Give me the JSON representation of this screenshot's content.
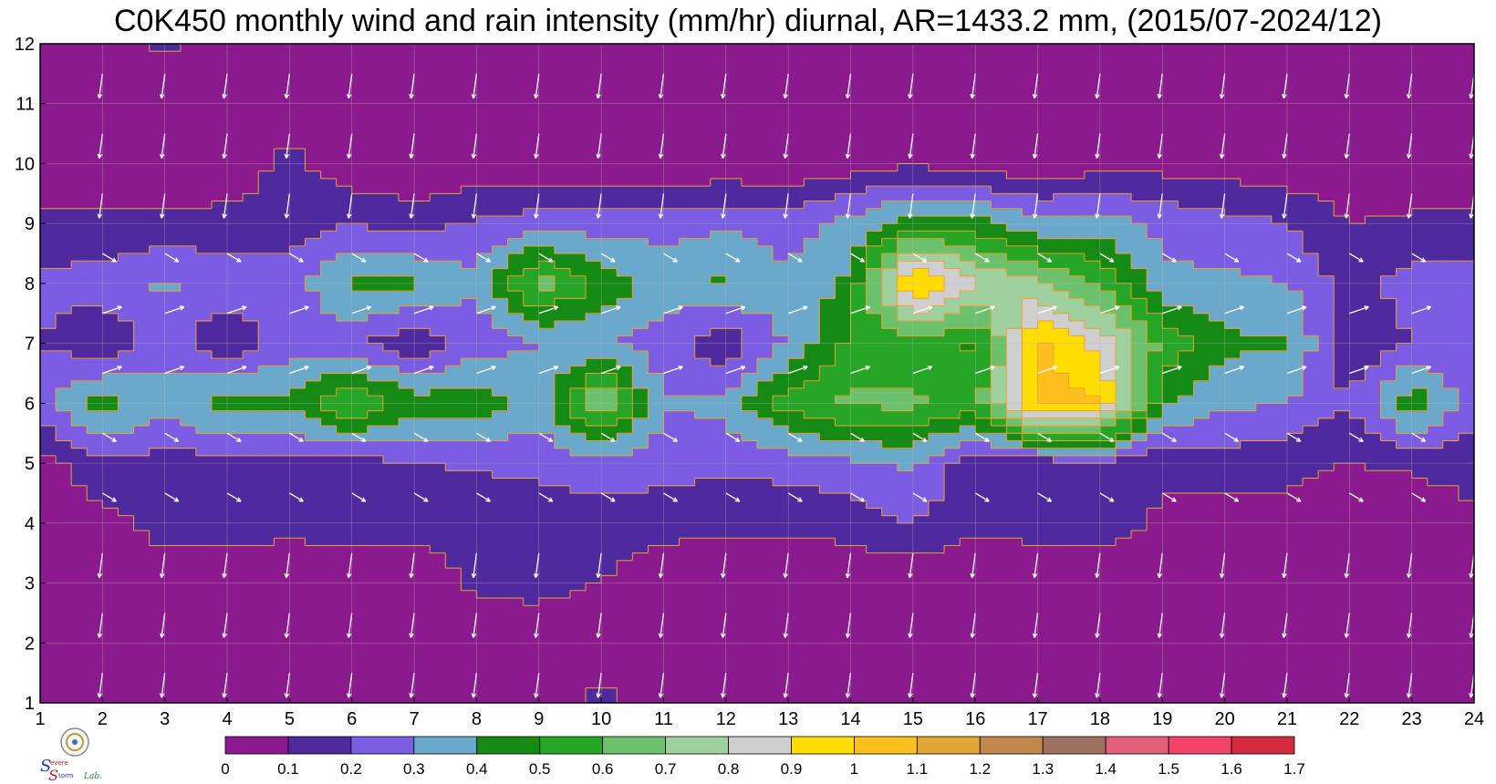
{
  "chart_data": {
    "type": "heatmap",
    "title": "C0K450 monthly wind and rain intensity (mm/hr) diurnal, AR=1433.2 mm, (2015/07-2024/12)",
    "xlabel": "",
    "ylabel": "",
    "x_ticks": [
      "1",
      "2",
      "3",
      "4",
      "5",
      "6",
      "7",
      "8",
      "9",
      "10",
      "11",
      "12",
      "13",
      "14",
      "15",
      "16",
      "17",
      "18",
      "19",
      "20",
      "21",
      "22",
      "23",
      "24"
    ],
    "y_ticks": [
      "1",
      "2",
      "3",
      "4",
      "5",
      "6",
      "7",
      "8",
      "9",
      "10",
      "11",
      "12"
    ],
    "xlim": [
      1,
      24
    ],
    "ylim": [
      1,
      12
    ],
    "colorbar": {
      "ticks": [
        "0",
        "0.1",
        "0.2",
        "0.3",
        "0.4",
        "0.5",
        "0.6",
        "0.7",
        "0.8",
        "0.9",
        "1",
        "1.1",
        "1.2",
        "1.3",
        "1.4",
        "1.5",
        "1.6",
        "1.7"
      ],
      "colors": [
        "#8b1a8e",
        "#4e2a9e",
        "#7a5de2",
        "#6aa8cc",
        "#158a14",
        "#26a526",
        "#6cc16c",
        "#9fd09f",
        "#cfcfcf",
        "#ffdd00",
        "#ffbf1e",
        "#e2a637",
        "#c1874c",
        "#9c7160",
        "#e2607a",
        "#f24468",
        "#d52a3e"
      ]
    },
    "grid": true,
    "contour_line_color": "#f0a030",
    "vector_color": "#ffffff",
    "grid_values_note": "rain intensity (mm/hr) sampled on integer x (1-24) and y (1-12) grid",
    "z": [
      [
        0.02,
        0.02,
        0.02,
        0.02,
        0.02,
        0.02,
        0.02,
        0.02,
        0.02,
        0.15,
        0.02,
        0.02,
        0.02,
        0.02,
        0.02,
        0.02,
        0.02,
        0.02,
        0.02,
        0.02,
        0.02,
        0.02,
        0.02,
        0.02
      ],
      [
        0.02,
        0.02,
        0.02,
        0.02,
        0.02,
        0.02,
        0.02,
        0.02,
        0.02,
        0.02,
        0.02,
        0.02,
        0.02,
        0.02,
        0.02,
        0.02,
        0.02,
        0.02,
        0.02,
        0.02,
        0.02,
        0.02,
        0.02,
        0.02
      ],
      [
        0.02,
        0.02,
        0.02,
        0.02,
        0.02,
        0.02,
        0.02,
        0.12,
        0.14,
        0.1,
        0.02,
        0.02,
        0.02,
        0.02,
        0.02,
        0.02,
        0.02,
        0.02,
        0.02,
        0.02,
        0.02,
        0.02,
        0.02,
        0.02
      ],
      [
        0.03,
        0.06,
        0.15,
        0.15,
        0.13,
        0.15,
        0.14,
        0.14,
        0.16,
        0.15,
        0.14,
        0.13,
        0.12,
        0.14,
        0.2,
        0.12,
        0.14,
        0.16,
        0.08,
        0.05,
        0.08,
        0.02,
        0.02,
        0.08
      ],
      [
        0.05,
        0.18,
        0.15,
        0.16,
        0.18,
        0.15,
        0.2,
        0.21,
        0.22,
        0.25,
        0.24,
        0.22,
        0.24,
        0.28,
        0.32,
        0.13,
        0.14,
        0.16,
        0.12,
        0.16,
        0.12,
        0.1,
        0.12,
        0.14
      ],
      [
        0.28,
        0.45,
        0.35,
        0.45,
        0.42,
        0.62,
        0.45,
        0.48,
        0.35,
        0.72,
        0.3,
        0.34,
        0.55,
        0.62,
        0.62,
        0.55,
        1.05,
        1.02,
        0.42,
        0.32,
        0.3,
        0.2,
        0.48,
        0.25
      ],
      [
        0.2,
        0.12,
        0.24,
        0.12,
        0.25,
        0.22,
        0.12,
        0.24,
        0.3,
        0.32,
        0.24,
        0.12,
        0.32,
        0.52,
        0.55,
        0.48,
        1.02,
        0.86,
        0.58,
        0.42,
        0.42,
        0.12,
        0.2,
        0.22
      ],
      [
        0.22,
        0.25,
        0.32,
        0.25,
        0.25,
        0.42,
        0.42,
        0.32,
        0.65,
        0.48,
        0.35,
        0.42,
        0.32,
        0.42,
        1.05,
        0.82,
        0.72,
        0.6,
        0.32,
        0.32,
        0.3,
        0.15,
        0.25,
        0.25
      ],
      [
        0.12,
        0.12,
        0.12,
        0.14,
        0.14,
        0.2,
        0.15,
        0.22,
        0.25,
        0.25,
        0.26,
        0.28,
        0.25,
        0.34,
        0.45,
        0.44,
        0.32,
        0.35,
        0.27,
        0.24,
        0.2,
        0.1,
        0.12,
        0.12
      ],
      [
        0.02,
        0.05,
        0.02,
        0.02,
        0.14,
        0.02,
        0.02,
        0.02,
        0.02,
        0.02,
        0.02,
        0.02,
        0.02,
        0.05,
        0.09,
        0.05,
        0.03,
        0.05,
        0.06,
        0.05,
        0.03,
        0.02,
        0.02,
        0.02
      ],
      [
        0.02,
        0.02,
        0.02,
        0.02,
        0.02,
        0.02,
        0.02,
        0.02,
        0.02,
        0.02,
        0.02,
        0.02,
        0.02,
        0.02,
        0.02,
        0.02,
        0.02,
        0.02,
        0.02,
        0.02,
        0.02,
        0.02,
        0.02,
        0.02
      ],
      [
        0.02,
        0.02,
        0.12,
        0.02,
        0.02,
        0.02,
        0.02,
        0.02,
        0.02,
        0.02,
        0.02,
        0.02,
        0.02,
        0.02,
        0.02,
        0.02,
        0.02,
        0.02,
        0.02,
        0.02,
        0.02,
        0.02,
        0.02,
        0.02
      ]
    ]
  },
  "logo": {
    "text_parts": [
      "S",
      "evere",
      "S",
      "torm",
      "Lab."
    ]
  }
}
